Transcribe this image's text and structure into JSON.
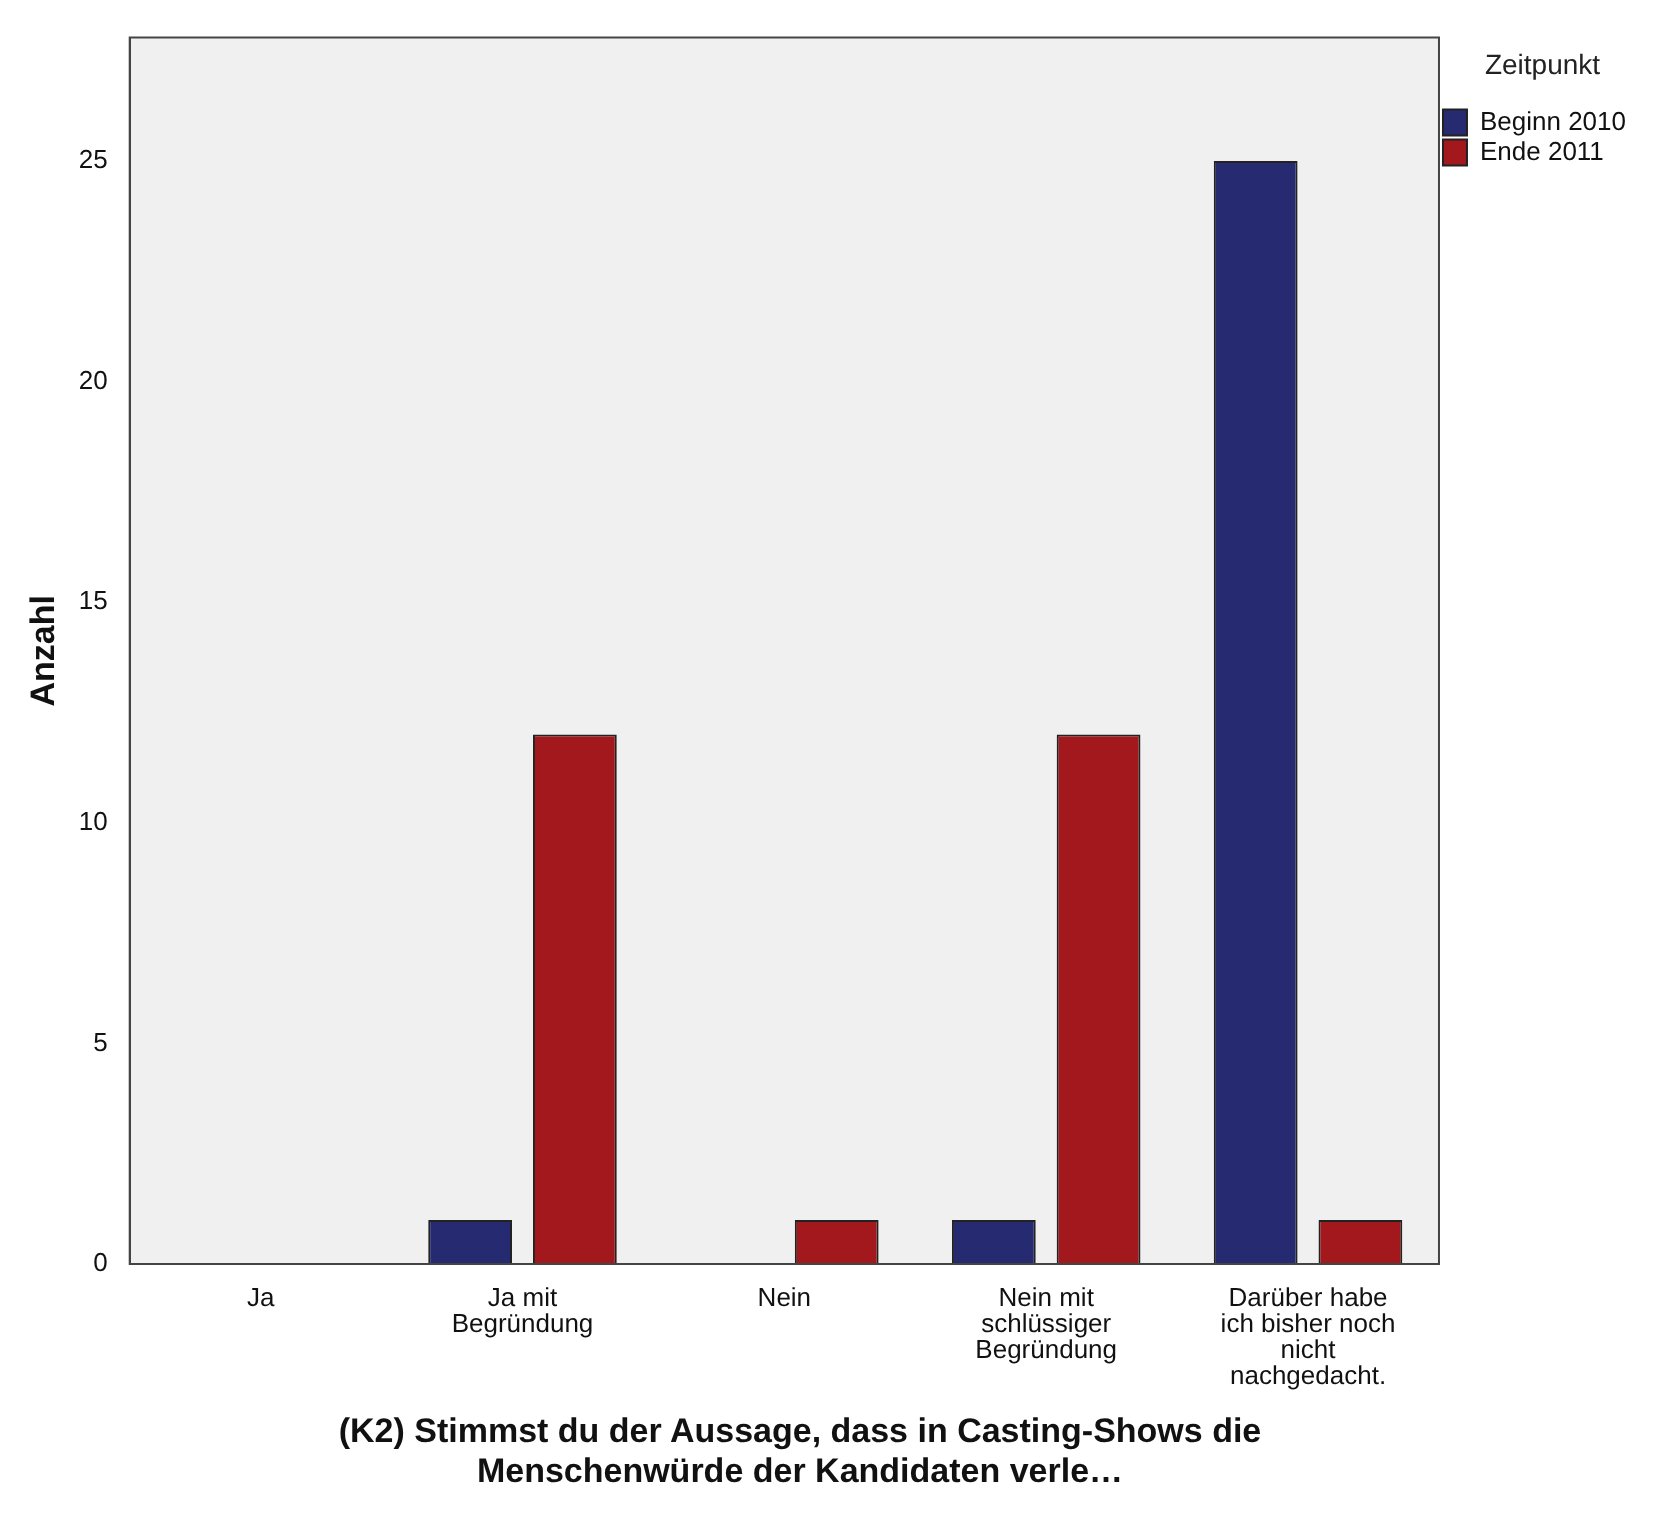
{
  "chart_data": {
    "type": "bar",
    "xlabel": "(K2) Stimmst du der Aussage, dass in Casting-Shows die Menschenwürde der Kandidaten verle…",
    "ylabel": "Anzahl",
    "legend_title": "Zeitpunkt",
    "categories": [
      "Ja",
      "Ja mit Begründung",
      "Nein",
      "Nein mit schlüssiger Begründung",
      "Darüber habe ich bisher noch nicht nachgedacht."
    ],
    "series": [
      {
        "name": "Beginn 2010",
        "color": "#262a70",
        "values": [
          0,
          1,
          0,
          1,
          25
        ]
      },
      {
        "name": "Ende 2011",
        "color": "#a3181d",
        "values": [
          0,
          12,
          1,
          12,
          1
        ]
      }
    ],
    "ylim": [
      0,
      27.8
    ],
    "yticks": [
      0,
      5,
      10,
      15,
      20,
      25
    ],
    "grid": false,
    "legend": "top right"
  }
}
